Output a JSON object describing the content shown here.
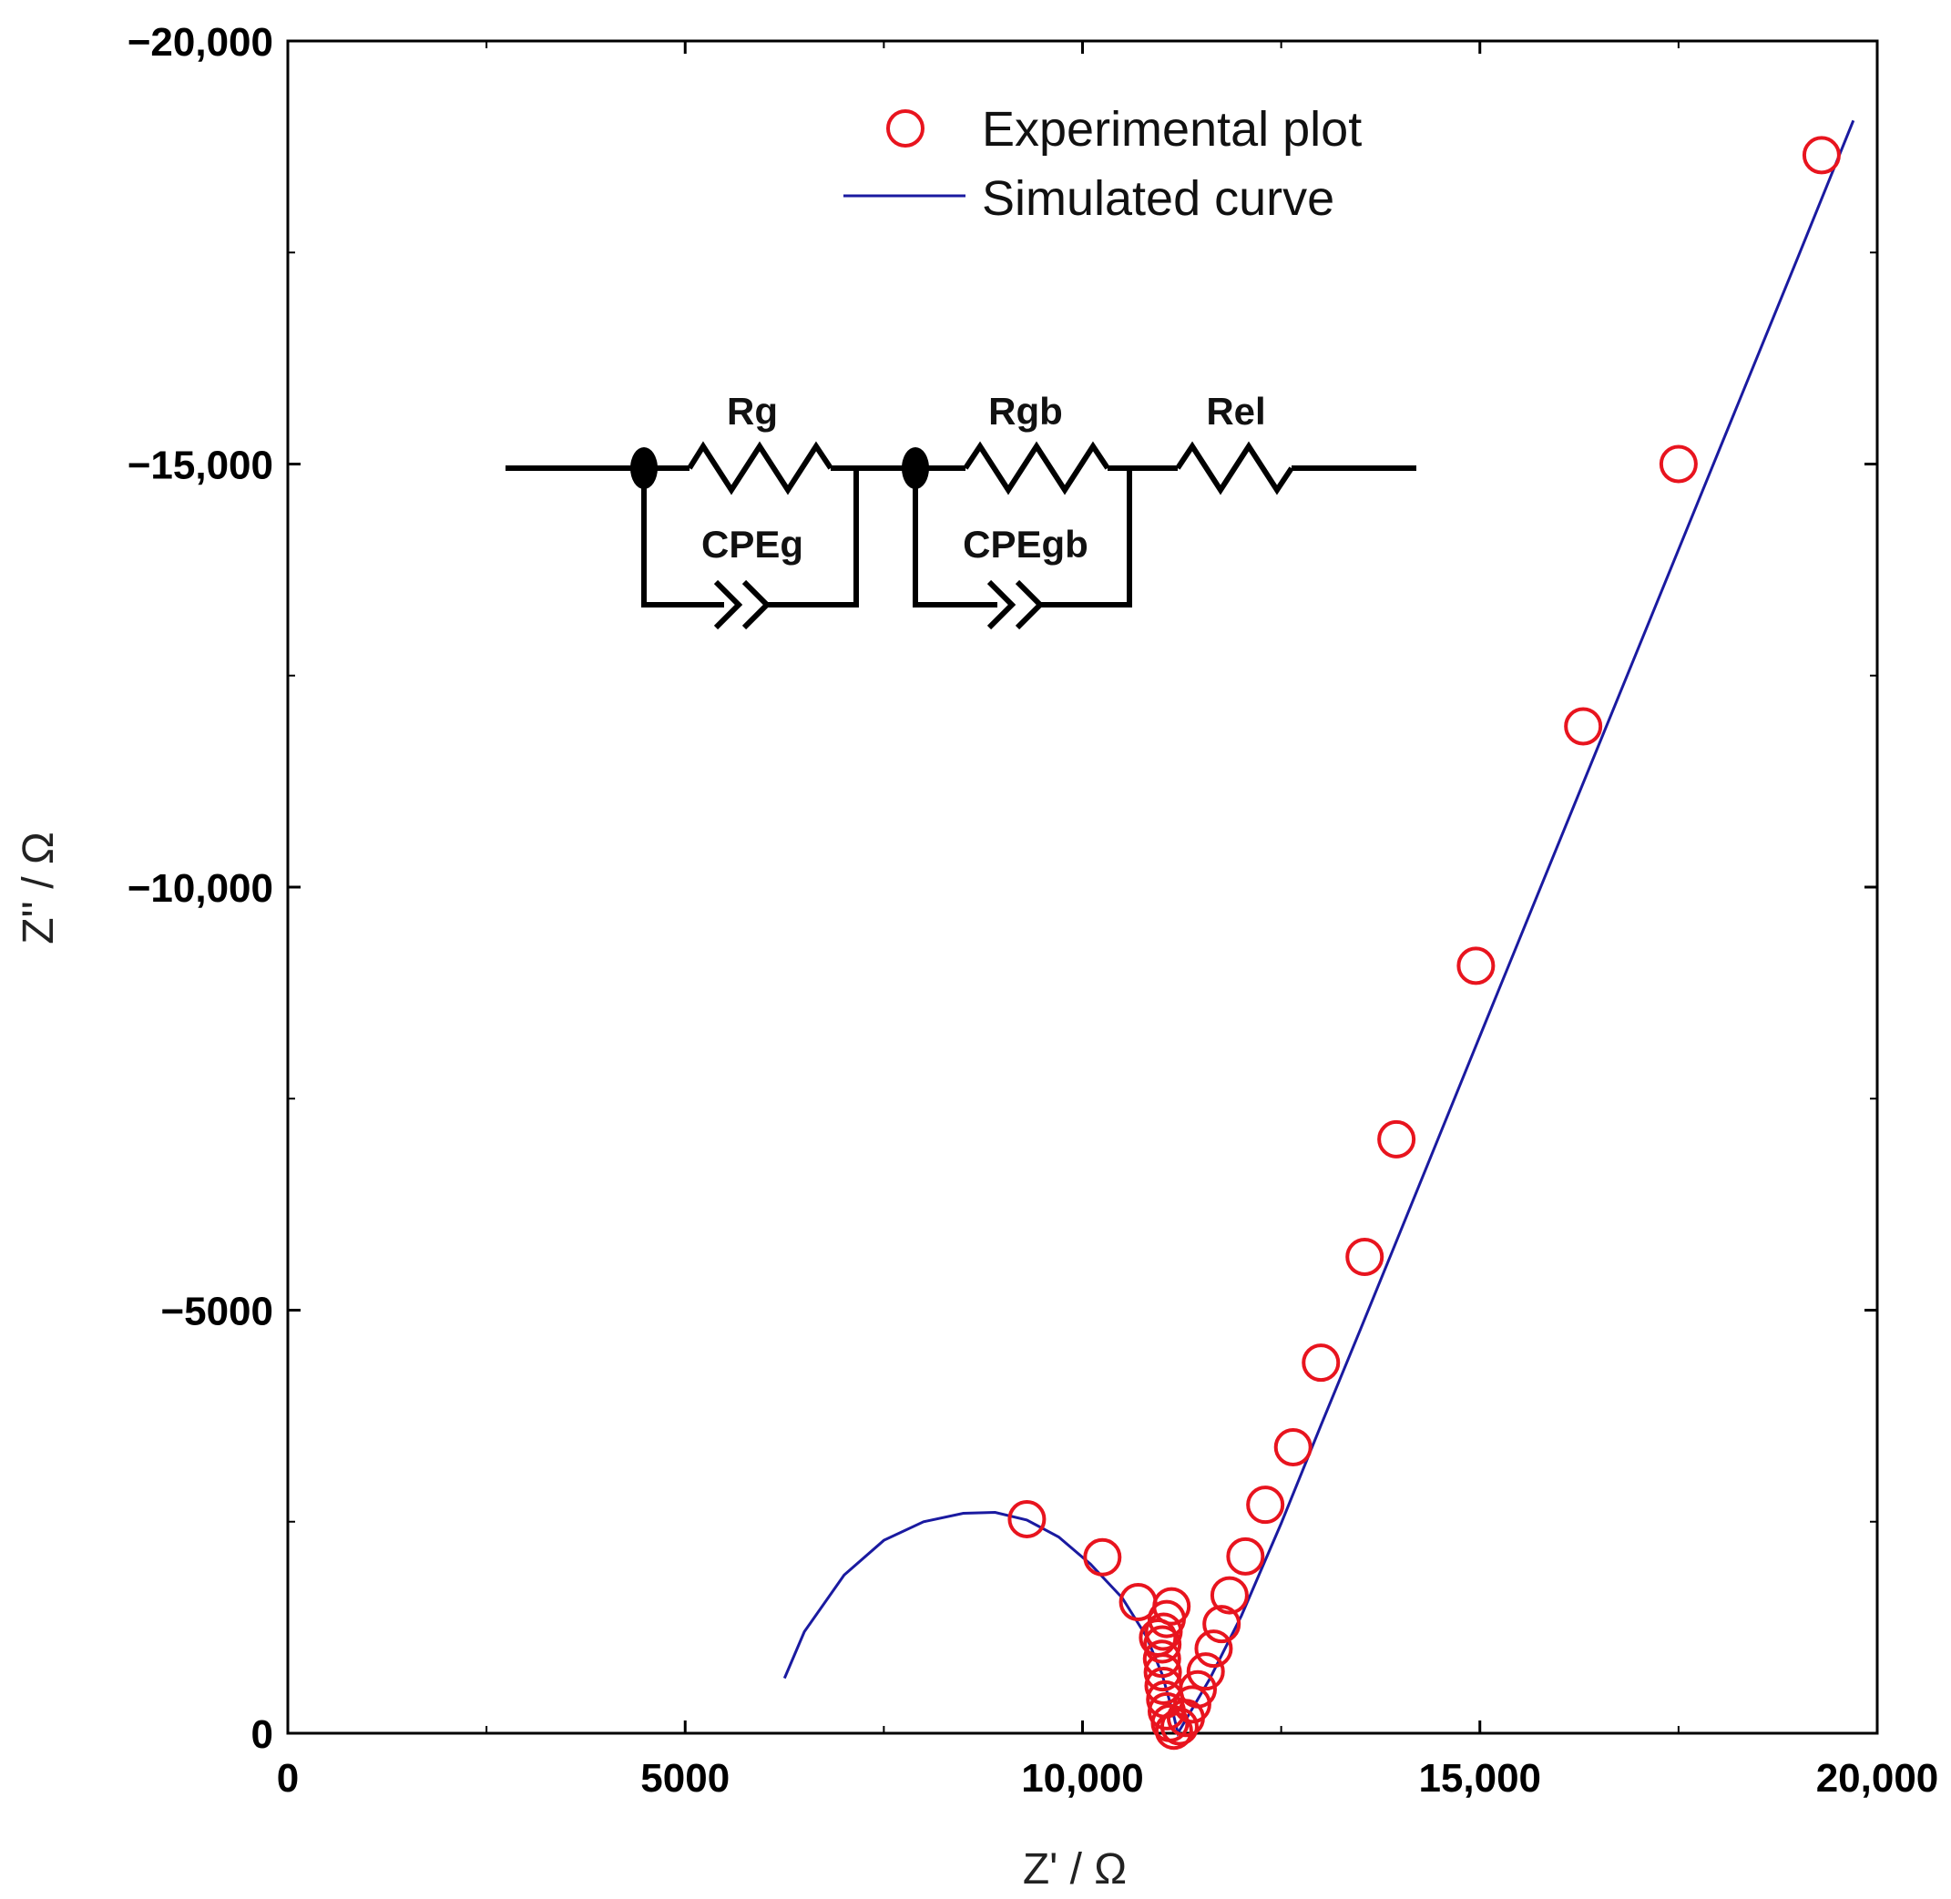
{
  "chart_data": {
    "type": "scatter",
    "title": "",
    "xlabel": "Z' / Ω",
    "ylabel": "Z'' / Ω",
    "xlim": [
      0,
      20000
    ],
    "ylim": [
      0,
      -20000
    ],
    "x_ticks": [
      {
        "value": 0,
        "label": "0"
      },
      {
        "value": 5000,
        "label": "5000"
      },
      {
        "value": 10000,
        "label": "10,000"
      },
      {
        "value": 15000,
        "label": "15,000"
      },
      {
        "value": 20000,
        "label": "20,000"
      }
    ],
    "y_ticks": [
      {
        "value": 0,
        "label": "0"
      },
      {
        "value": -5000,
        "label": "−5000"
      },
      {
        "value": -10000,
        "label": "−10,000"
      },
      {
        "value": -15000,
        "label": "−15,000"
      },
      {
        "value": -20000,
        "label": "−20,000"
      }
    ],
    "grid": false,
    "legend_position": "top-center",
    "series": [
      {
        "name": "Experimental plot",
        "kind": "scatter",
        "marker": "open-circle",
        "color": "#e8141e",
        "x": [
          19300,
          17500,
          16300,
          14950,
          13950,
          13550,
          13000,
          12650,
          12300,
          12050,
          11850,
          11750,
          11650,
          11550,
          11450,
          11380,
          11300,
          11220,
          11150,
          11100,
          11060,
          11040,
          11020,
          11010,
          11000,
          11005,
          11020,
          11060,
          11120,
          10950,
          10700,
          10250,
          9300
        ],
        "y": [
          -18650,
          -15000,
          -11900,
          -9070,
          -7020,
          -5630,
          -4380,
          -3380,
          -2700,
          -2090,
          -1630,
          -1290,
          -1000,
          -730,
          -520,
          -340,
          -180,
          -80,
          -30,
          -120,
          -260,
          -400,
          -560,
          -720,
          -880,
          -1050,
          -1200,
          -1350,
          -1500,
          -1130,
          -1550,
          -2080,
          -2530
        ]
      },
      {
        "name": "Simulated curve",
        "kind": "line",
        "color": "#1a1aa0",
        "x": [
          6250,
          6500,
          7000,
          7500,
          8000,
          8500,
          8900,
          9300,
          9700,
          10100,
          10500,
          10800,
          11000,
          11150,
          11200,
          11600,
          12000,
          12500,
          13000,
          13500,
          14000,
          15000,
          16000,
          17000,
          18000,
          19000,
          19700
        ],
        "y": [
          -650,
          -1200,
          -1870,
          -2280,
          -2500,
          -2600,
          -2610,
          -2520,
          -2320,
          -2000,
          -1600,
          -1150,
          -700,
          -200,
          0,
          -640,
          -1390,
          -2480,
          -3640,
          -4780,
          -5930,
          -8240,
          -10540,
          -12840,
          -15140,
          -17440,
          -19060
        ]
      }
    ],
    "annotations": [
      {
        "type": "equivalent-circuit",
        "components": [
          "Rg",
          "CPEg",
          "Rgb",
          "CPEgb",
          "Rel"
        ]
      }
    ]
  }
}
